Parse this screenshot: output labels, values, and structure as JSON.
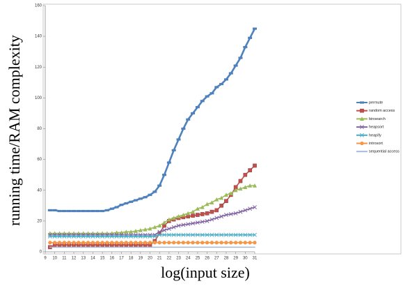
{
  "chart_data": {
    "type": "line",
    "xlabel": "log(input size)",
    "ylabel": "running time/RAM complexity",
    "x": [
      9.5,
      10,
      10.5,
      11,
      11.5,
      12,
      12.5,
      13,
      13.5,
      14,
      14.5,
      15,
      15.5,
      16,
      16.5,
      17,
      17.5,
      18,
      18.5,
      19,
      19.5,
      20,
      20.5,
      21,
      21.5,
      22,
      22.5,
      23,
      23.5,
      24,
      24.5,
      25,
      25.5,
      26,
      26.5,
      27,
      27.5,
      28,
      28.5,
      29,
      29.5,
      30,
      30.5,
      31
    ],
    "xlim": [
      9,
      31
    ],
    "xticks": [
      9,
      10,
      11,
      12,
      13,
      14,
      15,
      16,
      17,
      18,
      19,
      20,
      21,
      22,
      23,
      24,
      25,
      26,
      27,
      28,
      29,
      30,
      31
    ],
    "ylim": [
      0,
      160
    ],
    "yticks": [
      0,
      20,
      40,
      60,
      80,
      100,
      120,
      140,
      160
    ],
    "grid": false,
    "legend": "right",
    "series": [
      {
        "name": "permute",
        "color": "#4f81bd",
        "marker": "dash",
        "values": [
          27,
          27,
          26.5,
          26.5,
          26.5,
          26.5,
          26.5,
          26.5,
          26.5,
          26.5,
          26.5,
          26.5,
          27,
          28,
          29,
          30.5,
          31.5,
          32.5,
          33.5,
          34.5,
          35.5,
          37,
          39,
          43,
          50,
          58,
          66,
          73,
          80,
          86,
          90,
          94,
          98,
          101,
          103,
          107,
          109,
          112,
          116,
          121,
          126,
          133,
          139,
          145
        ]
      },
      {
        "name": "random access",
        "color": "#c0504d",
        "marker": "square",
        "values": [
          3,
          4.5,
          4.5,
          4.5,
          4.5,
          4.5,
          4.5,
          4.5,
          4.5,
          4.5,
          4.5,
          4.5,
          4.5,
          4.5,
          4.5,
          4.5,
          4.5,
          4.5,
          4.5,
          4.5,
          4.5,
          4.5,
          7,
          12,
          17,
          20,
          21,
          22,
          22.5,
          23,
          23.5,
          24,
          24.5,
          25,
          26,
          27,
          30,
          33,
          37,
          42,
          46,
          50,
          53,
          56
        ]
      },
      {
        "name": "binsearch",
        "color": "#9bbb59",
        "marker": "triangle",
        "values": [
          12,
          12,
          12,
          12,
          12,
          12,
          12,
          12,
          12,
          12,
          12,
          12,
          12,
          12,
          12.5,
          12.5,
          13,
          13,
          13.5,
          14,
          14.5,
          15,
          16,
          17,
          19,
          21,
          22,
          23,
          24,
          25,
          26,
          28,
          29,
          31,
          32,
          34,
          35,
          37,
          38,
          40,
          41,
          42,
          43,
          43
        ]
      },
      {
        "name": "heapsort",
        "color": "#8064a2",
        "marker": "x",
        "values": [
          11,
          11,
          11,
          11,
          11,
          11,
          11,
          11,
          11,
          11,
          11,
          11,
          11,
          11,
          11,
          11,
          11,
          11,
          11,
          11,
          11,
          11,
          11,
          13,
          14,
          15,
          16,
          17,
          17.5,
          18,
          18.5,
          19,
          19.5,
          20,
          21,
          22,
          23,
          24,
          24.5,
          25,
          26,
          27,
          28,
          29
        ]
      },
      {
        "name": "heapify",
        "color": "#4bacc6",
        "marker": "x",
        "values": [
          10,
          10,
          10,
          10,
          10,
          10,
          10,
          10,
          10,
          10,
          10,
          10,
          10,
          10,
          10,
          10,
          10,
          10,
          10,
          10,
          10,
          10,
          10,
          11,
          11,
          11,
          11,
          11,
          11,
          11,
          11,
          11,
          11,
          11,
          11,
          11,
          11,
          11,
          11,
          11,
          11,
          11,
          11,
          11
        ]
      },
      {
        "name": "introsort",
        "color": "#f79646",
        "marker": "circle",
        "values": [
          6,
          6,
          6,
          6,
          6,
          6,
          6,
          6,
          6,
          6,
          6,
          6,
          6,
          6,
          6,
          6,
          6,
          6,
          6,
          6,
          6,
          6,
          6,
          6,
          6,
          6,
          6,
          6,
          6,
          6,
          6,
          6,
          6,
          6,
          6,
          6,
          6,
          6,
          6,
          6,
          6,
          6,
          6,
          6
        ]
      },
      {
        "name": "sequential access",
        "color": "#a5b9dd",
        "marker": "none",
        "values": [
          3,
          3,
          3,
          3,
          3,
          3,
          3,
          3,
          3,
          3,
          3,
          3,
          3,
          3,
          3,
          3,
          3,
          3,
          3,
          3,
          3,
          3,
          3,
          3,
          3,
          3,
          3,
          3,
          3,
          3,
          3,
          3,
          3,
          3,
          3,
          3,
          3,
          3,
          3,
          3,
          3,
          3,
          3,
          3
        ]
      }
    ]
  }
}
